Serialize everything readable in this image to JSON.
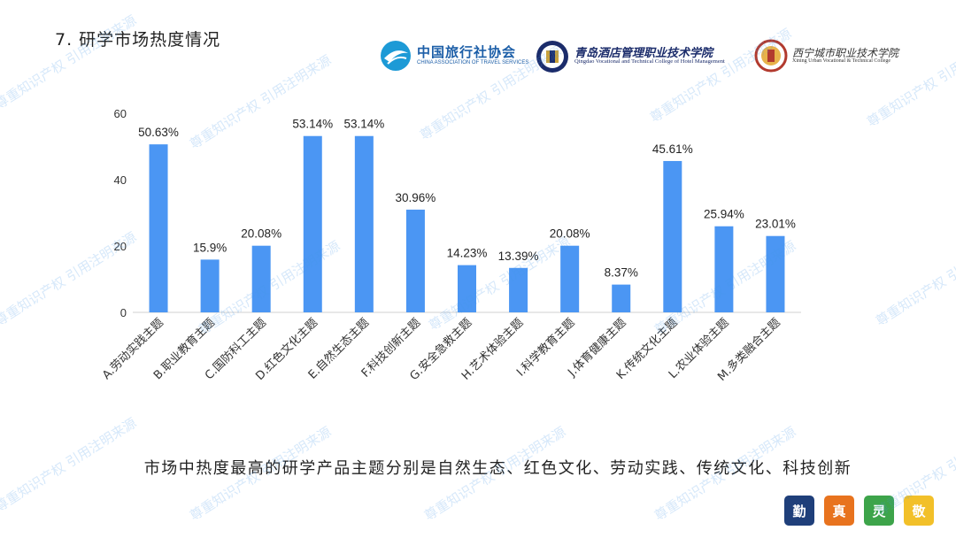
{
  "slide": {
    "title": "7. 研学市场热度情况",
    "summary": "市场中热度最高的研学产品主题分别是自然生态、红色文化、劳动实践、传统文化、科技创新",
    "watermark": "尊重知识产权 引用注明来源"
  },
  "logos": {
    "cats": {
      "main": "中国旅行社协会",
      "sub": "CHINA ASSOCIATION OF TRAVEL SERVICES",
      "color": "#1d5fa8"
    },
    "qingdao": {
      "main": "青岛酒店管理职业技术学院",
      "sub": "Qingdao Vocational and Technical College of Hotel Management",
      "color": "#1b2c6b"
    },
    "xining": {
      "main": "西宁城市职业技术学院",
      "sub": "Xining Urban Vocational & Technical College"
    }
  },
  "badges": [
    {
      "label": "勤",
      "color": "#1f3f7a"
    },
    {
      "label": "真",
      "color": "#e8731e"
    },
    {
      "label": "灵",
      "color": "#3da44a"
    },
    {
      "label": "敬",
      "color": "#f2c029"
    }
  ],
  "chart_data": {
    "type": "bar",
    "categories": [
      "A.劳动实践主题",
      "B.职业教育主题",
      "C.国防科工主题",
      "D.红色文化主题",
      "E.自然生态主题",
      "F.科技创新主题",
      "G.安全急救主题",
      "H.艺术体验主题",
      "I.科学教育主题",
      "J.体育健康主题",
      "K.传统文化主题",
      "L.农业体验主题",
      "M.多类融合主题"
    ],
    "values": [
      50.63,
      15.9,
      20.08,
      53.14,
      53.14,
      30.96,
      14.23,
      13.39,
      20.08,
      8.37,
      45.61,
      25.94,
      23.01
    ],
    "value_labels": [
      "50.63%",
      "15.9%",
      "20.08%",
      "53.14%",
      "53.14%",
      "30.96%",
      "14.23%",
      "13.39%",
      "20.08%",
      "8.37%",
      "45.61%",
      "25.94%",
      "23.01%"
    ],
    "yticks": [
      0,
      20,
      40,
      60
    ],
    "ylim": [
      0,
      60
    ],
    "bar_color": "#4b96f3",
    "grid": false,
    "legend": "none"
  }
}
